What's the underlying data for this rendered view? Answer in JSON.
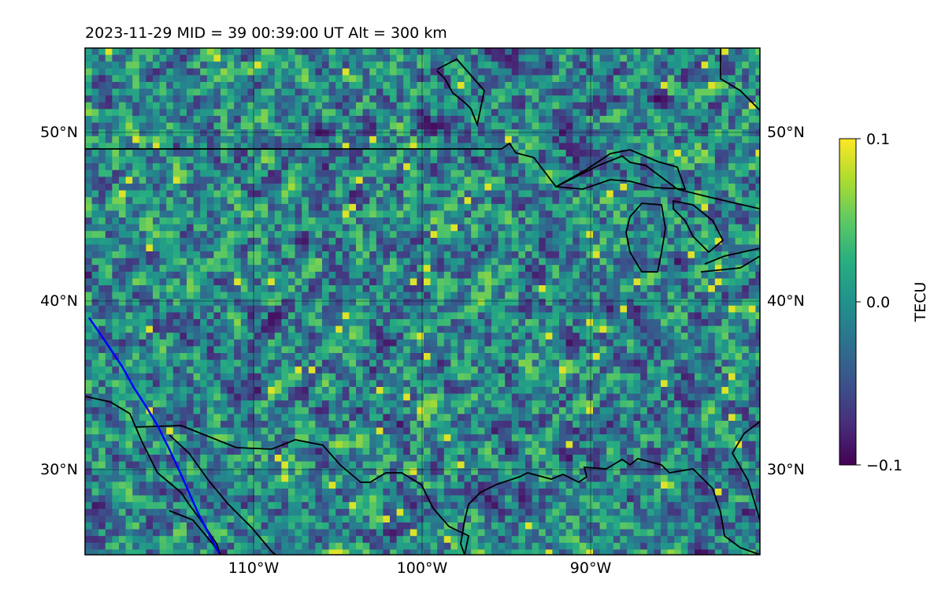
{
  "title": "2023-11-29  MID =  39    00:39:00  UT  Alt = 300 km",
  "map": {
    "lat_range": [
      25,
      55
    ],
    "lon_range": [
      -120,
      -80
    ],
    "latitude_labels": [
      "50°N",
      "40°N",
      "30°N"
    ],
    "longitude_labels": [
      "110°W",
      "100°W",
      "90°W"
    ],
    "gridlines": true,
    "colormap": "viridis"
  },
  "colorbar": {
    "label": "TECU",
    "ticks": [
      "0.1",
      "0.0",
      "−0.1"
    ],
    "min": -0.1,
    "max": 0.1
  },
  "colors": {
    "coastline": "#000000",
    "track": "#0000ff",
    "viridis_low": "#440154",
    "viridis_mid": "#21918c",
    "viridis_high": "#fde725"
  }
}
